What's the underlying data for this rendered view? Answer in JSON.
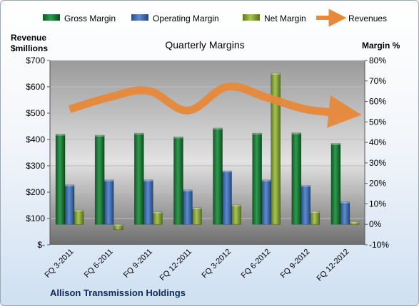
{
  "chart_data": {
    "type": "bar",
    "title": "Quarterly Margins",
    "footer": "Allison Transmission Holdings",
    "categories": [
      "FQ 3-2011",
      "FQ 6-2011",
      "FQ 9-2011",
      "FQ 12-2011",
      "FQ 3-2012",
      "FQ 6-2012",
      "FQ 9-2012",
      "FQ 12-2012"
    ],
    "series": [
      {
        "name": "Gross Margin",
        "axis": "right",
        "kind": "bar",
        "color": "#1f7a3a",
        "values": [
          44.0,
          43.5,
          44.5,
          42.7,
          47.0,
          44.5,
          44.7,
          39.5
        ]
      },
      {
        "name": "Operating Margin",
        "axis": "right",
        "kind": "bar",
        "color": "#3d6aa8",
        "values": [
          19.3,
          21.7,
          21.7,
          16.8,
          26.1,
          21.7,
          19.0,
          11.0
        ]
      },
      {
        "name": "Net Margin",
        "axis": "right",
        "kind": "bar",
        "color": "#8aa83a",
        "values": [
          7.0,
          -2.6,
          6.1,
          8.1,
          9.5,
          73.8,
          6.3,
          1.3
        ]
      },
      {
        "name": "Revenues",
        "axis": "left",
        "kind": "line",
        "color": "#e8893a",
        "values": [
          515,
          560,
          585,
          510,
          600,
          560,
          515,
          500
        ]
      }
    ],
    "left_axis": {
      "label": "Revenue $millions",
      "ylim": [
        0,
        700
      ],
      "ticks": [
        0,
        100,
        200,
        300,
        400,
        500,
        600,
        700
      ],
      "tick_labels": [
        "$-",
        "$100",
        "$200",
        "$300",
        "$400",
        "$500",
        "$600",
        "$700"
      ]
    },
    "right_axis": {
      "label": "Margin %",
      "ylim": [
        -10,
        80
      ],
      "ticks": [
        -10,
        0,
        10,
        20,
        30,
        40,
        50,
        60,
        70,
        80
      ],
      "tick_labels": [
        "-10%",
        "0%",
        "10%",
        "20%",
        "30%",
        "40%",
        "50%",
        "60%",
        "70%",
        "80%"
      ]
    },
    "legend_position": "top",
    "grid": true
  }
}
